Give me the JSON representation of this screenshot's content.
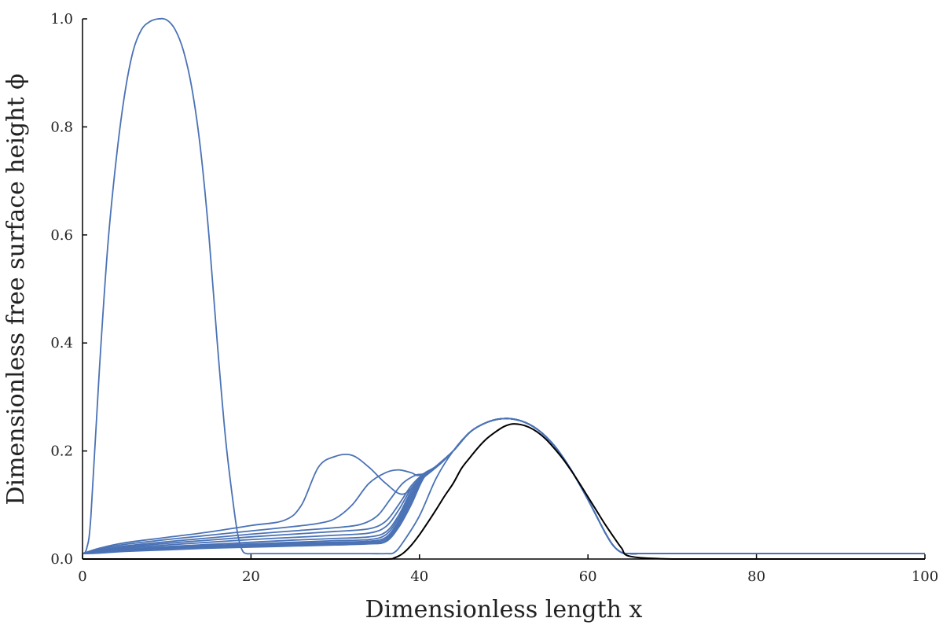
{
  "chart_data": {
    "type": "line",
    "xlabel": "Dimensionless length x",
    "ylabel": "Dimensionless free surface height ϕ",
    "xlim": [
      0,
      100
    ],
    "ylim": [
      0,
      1.0
    ],
    "x_ticks": [
      "0",
      "20",
      "40",
      "60",
      "80",
      "100"
    ],
    "y_ticks": [
      "0.0",
      "0.2",
      "0.4",
      "0.6",
      "0.8",
      "1.0"
    ],
    "grid": false,
    "colors": {
      "series": "#4a72b5",
      "bed": "#000000"
    },
    "series": [
      {
        "x": [
          0,
          0.5,
          1,
          2,
          3,
          4,
          5,
          6,
          7,
          8,
          9,
          10,
          11,
          12,
          13,
          14,
          15,
          16,
          17,
          18,
          18.5,
          19,
          19.5,
          20,
          22,
          26,
          30,
          34,
          36,
          37,
          38,
          40,
          42,
          44,
          46,
          48,
          50,
          52,
          54,
          56,
          58,
          60,
          62,
          63,
          64,
          65,
          66,
          70,
          80,
          90,
          100
        ],
        "y": [
          0.01,
          0.02,
          0.08,
          0.35,
          0.58,
          0.74,
          0.86,
          0.94,
          0.98,
          0.995,
          1.0,
          0.998,
          0.98,
          0.94,
          0.87,
          0.76,
          0.6,
          0.4,
          0.22,
          0.09,
          0.04,
          0.015,
          0.01,
          0.01,
          0.01,
          0.01,
          0.01,
          0.01,
          0.01,
          0.012,
          0.03,
          0.08,
          0.15,
          0.2,
          0.235,
          0.253,
          0.26,
          0.256,
          0.24,
          0.21,
          0.165,
          0.11,
          0.05,
          0.025,
          0.012,
          0.01,
          0.01,
          0.01,
          0.01,
          0.01,
          0.01
        ]
      },
      {
        "x": [
          0,
          2,
          5,
          10,
          15,
          20,
          24,
          26,
          28,
          30,
          32,
          34,
          36,
          38,
          40,
          42,
          44,
          46,
          48,
          50,
          52,
          54,
          56,
          58,
          60,
          62,
          63,
          64,
          65,
          66,
          70,
          80,
          90,
          100
        ],
        "y": [
          0.01,
          0.02,
          0.03,
          0.04,
          0.05,
          0.062,
          0.072,
          0.1,
          0.17,
          0.19,
          0.192,
          0.17,
          0.14,
          0.12,
          0.145,
          0.17,
          0.2,
          0.235,
          0.253,
          0.26,
          0.256,
          0.24,
          0.21,
          0.165,
          0.11,
          0.05,
          0.025,
          0.012,
          0.01,
          0.01,
          0.01,
          0.01,
          0.01,
          0.01
        ]
      },
      {
        "x": [
          0,
          2,
          5,
          10,
          15,
          20,
          25,
          28,
          30,
          32,
          34,
          36,
          37.5,
          39,
          40,
          42,
          44,
          46,
          48,
          50,
          52,
          54,
          56,
          58,
          60,
          62,
          63,
          64,
          65,
          66,
          70,
          80,
          90,
          100
        ],
        "y": [
          0.01,
          0.018,
          0.027,
          0.036,
          0.044,
          0.052,
          0.06,
          0.066,
          0.075,
          0.1,
          0.14,
          0.16,
          0.165,
          0.16,
          0.155,
          0.17,
          0.2,
          0.235,
          0.253,
          0.26,
          0.256,
          0.24,
          0.21,
          0.165,
          0.11,
          0.05,
          0.025,
          0.012,
          0.01,
          0.01,
          0.01,
          0.01,
          0.01,
          0.01
        ]
      },
      {
        "x": [
          0,
          2,
          5,
          10,
          15,
          20,
          25,
          30,
          33,
          35,
          36.5,
          38,
          39.5,
          40.5,
          42,
          44,
          46,
          48,
          50,
          52,
          54,
          56,
          58,
          60,
          62,
          63,
          64,
          65,
          66,
          70,
          80,
          90,
          100
        ],
        "y": [
          0.01,
          0.016,
          0.024,
          0.032,
          0.039,
          0.046,
          0.052,
          0.058,
          0.064,
          0.08,
          0.11,
          0.14,
          0.155,
          0.158,
          0.172,
          0.2,
          0.235,
          0.253,
          0.26,
          0.256,
          0.24,
          0.21,
          0.165,
          0.11,
          0.05,
          0.025,
          0.012,
          0.01,
          0.01,
          0.01,
          0.01,
          0.01,
          0.01
        ]
      },
      {
        "x": [
          0,
          2,
          5,
          10,
          15,
          20,
          25,
          30,
          34,
          36,
          37.5,
          39,
          40.5,
          42,
          44,
          46,
          48,
          50,
          52,
          54,
          56,
          58,
          60,
          62,
          63,
          64,
          65,
          66,
          70,
          80,
          90,
          100
        ],
        "y": [
          0.01,
          0.015,
          0.022,
          0.029,
          0.035,
          0.041,
          0.046,
          0.051,
          0.056,
          0.07,
          0.1,
          0.135,
          0.158,
          0.172,
          0.2,
          0.235,
          0.253,
          0.26,
          0.256,
          0.24,
          0.21,
          0.165,
          0.11,
          0.05,
          0.025,
          0.012,
          0.01,
          0.01,
          0.01,
          0.01,
          0.01,
          0.01
        ]
      },
      {
        "x": [
          0,
          2,
          5,
          10,
          15,
          20,
          25,
          30,
          34,
          36,
          37.5,
          39,
          40.5,
          42,
          44,
          46,
          48,
          50,
          52,
          54,
          56,
          58,
          60,
          62,
          63,
          64,
          65,
          66,
          70,
          80,
          90,
          100
        ],
        "y": [
          0.01,
          0.014,
          0.02,
          0.026,
          0.031,
          0.036,
          0.04,
          0.044,
          0.048,
          0.06,
          0.09,
          0.13,
          0.156,
          0.172,
          0.2,
          0.235,
          0.253,
          0.26,
          0.256,
          0.24,
          0.21,
          0.165,
          0.11,
          0.05,
          0.025,
          0.012,
          0.01,
          0.01,
          0.01,
          0.01,
          0.01,
          0.01
        ]
      },
      {
        "x": [
          0,
          2,
          5,
          10,
          15,
          20,
          25,
          30,
          34,
          36,
          37.5,
          39,
          40.5,
          42,
          44,
          46,
          48,
          50,
          52,
          54,
          56,
          58,
          60,
          62,
          63,
          64,
          65,
          66,
          70,
          80,
          90,
          100
        ],
        "y": [
          0.01,
          0.013,
          0.018,
          0.023,
          0.027,
          0.031,
          0.035,
          0.038,
          0.041,
          0.05,
          0.08,
          0.125,
          0.155,
          0.172,
          0.2,
          0.235,
          0.253,
          0.26,
          0.256,
          0.24,
          0.21,
          0.165,
          0.11,
          0.05,
          0.025,
          0.012,
          0.01,
          0.01,
          0.01,
          0.01,
          0.01,
          0.01
        ]
      },
      {
        "x": [
          0,
          2,
          5,
          10,
          15,
          20,
          25,
          30,
          34,
          36,
          37.5,
          39,
          40.5,
          42,
          44,
          46,
          48,
          50,
          52,
          54,
          56,
          58,
          60,
          62,
          63,
          64,
          65,
          66,
          70,
          80,
          90,
          100
        ],
        "y": [
          0.01,
          0.013,
          0.017,
          0.021,
          0.025,
          0.028,
          0.031,
          0.034,
          0.036,
          0.045,
          0.075,
          0.12,
          0.154,
          0.172,
          0.2,
          0.235,
          0.253,
          0.26,
          0.256,
          0.24,
          0.21,
          0.165,
          0.11,
          0.05,
          0.025,
          0.012,
          0.01,
          0.01,
          0.01,
          0.01,
          0.01,
          0.01
        ]
      },
      {
        "x": [
          0,
          2,
          5,
          10,
          15,
          20,
          25,
          30,
          34,
          36,
          37.5,
          39,
          40.5,
          42,
          44,
          46,
          48,
          50,
          52,
          54,
          56,
          58,
          60,
          62,
          63,
          64,
          65,
          66,
          70,
          80,
          90,
          100
        ],
        "y": [
          0.01,
          0.012,
          0.016,
          0.02,
          0.023,
          0.026,
          0.029,
          0.031,
          0.033,
          0.04,
          0.07,
          0.115,
          0.153,
          0.172,
          0.2,
          0.235,
          0.253,
          0.26,
          0.256,
          0.24,
          0.21,
          0.165,
          0.11,
          0.05,
          0.025,
          0.012,
          0.01,
          0.01,
          0.01,
          0.01,
          0.01,
          0.01
        ]
      },
      {
        "x": [
          0,
          2,
          5,
          10,
          15,
          20,
          25,
          30,
          34,
          36,
          37.5,
          39,
          40.5,
          42,
          44,
          46,
          48,
          50,
          52,
          54,
          56,
          58,
          60,
          62,
          63,
          64,
          65,
          66,
          70,
          80,
          90,
          100
        ],
        "y": [
          0.01,
          0.012,
          0.015,
          0.019,
          0.022,
          0.024,
          0.027,
          0.029,
          0.031,
          0.037,
          0.066,
          0.11,
          0.152,
          0.172,
          0.2,
          0.235,
          0.253,
          0.26,
          0.256,
          0.24,
          0.21,
          0.165,
          0.11,
          0.05,
          0.025,
          0.012,
          0.01,
          0.01,
          0.01,
          0.01,
          0.01,
          0.01
        ]
      },
      {
        "x": [
          0,
          2,
          5,
          10,
          15,
          20,
          25,
          30,
          34,
          36,
          37.5,
          39,
          40.5,
          42,
          44,
          46,
          48,
          50,
          52,
          54,
          56,
          58,
          60,
          62,
          63,
          64,
          65,
          66,
          70,
          80,
          90,
          100
        ],
        "y": [
          0.01,
          0.012,
          0.015,
          0.018,
          0.021,
          0.023,
          0.025,
          0.027,
          0.029,
          0.034,
          0.062,
          0.105,
          0.151,
          0.172,
          0.2,
          0.235,
          0.253,
          0.26,
          0.256,
          0.24,
          0.21,
          0.165,
          0.11,
          0.05,
          0.025,
          0.012,
          0.01,
          0.01,
          0.01,
          0.01,
          0.01,
          0.01
        ]
      },
      {
        "x": [
          0,
          2,
          5,
          10,
          15,
          20,
          25,
          30,
          34,
          36,
          37.5,
          39,
          40.5,
          42,
          44,
          46,
          48,
          50,
          52,
          54,
          56,
          58,
          60,
          62,
          63,
          64,
          65,
          66,
          70,
          80,
          90,
          100
        ],
        "y": [
          0.01,
          0.011,
          0.014,
          0.017,
          0.02,
          0.022,
          0.024,
          0.026,
          0.028,
          0.032,
          0.058,
          0.1,
          0.15,
          0.172,
          0.2,
          0.235,
          0.253,
          0.26,
          0.256,
          0.24,
          0.21,
          0.165,
          0.11,
          0.05,
          0.025,
          0.012,
          0.01,
          0.01,
          0.01,
          0.01,
          0.01,
          0.01
        ]
      }
    ],
    "bed": {
      "x": [
        0,
        10,
        20,
        30,
        36,
        37,
        38,
        39,
        40,
        41,
        42,
        43,
        44,
        45,
        46,
        47,
        48,
        49,
        50,
        51,
        52,
        53,
        54,
        55,
        56,
        57,
        58,
        59,
        60,
        61,
        62,
        63,
        64,
        65,
        70,
        80,
        90,
        100
      ],
      "y": [
        0,
        0,
        0,
        0,
        0,
        0.002,
        0.01,
        0.025,
        0.045,
        0.068,
        0.092,
        0.117,
        0.14,
        0.168,
        0.188,
        0.207,
        0.223,
        0.235,
        0.245,
        0.25,
        0.249,
        0.244,
        0.235,
        0.222,
        0.205,
        0.186,
        0.164,
        0.14,
        0.115,
        0.09,
        0.065,
        0.042,
        0.02,
        0.005,
        0,
        0,
        0,
        0
      ]
    }
  }
}
